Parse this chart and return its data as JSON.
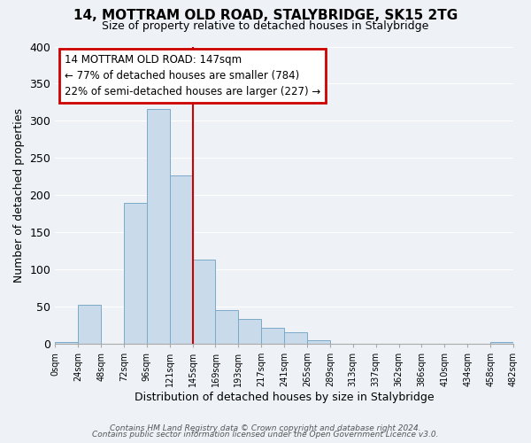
{
  "title": "14, MOTTRAM OLD ROAD, STALYBRIDGE, SK15 2TG",
  "subtitle": "Size of property relative to detached houses in Stalybridge",
  "xlabel": "Distribution of detached houses by size in Stalybridge",
  "ylabel": "Number of detached properties",
  "bar_color": "#c9daea",
  "bar_edge_color": "#7aaac8",
  "background_color": "#eef2f7",
  "bin_labels": [
    "0sqm",
    "24sqm",
    "48sqm",
    "72sqm",
    "96sqm",
    "121sqm",
    "145sqm",
    "169sqm",
    "193sqm",
    "217sqm",
    "241sqm",
    "265sqm",
    "289sqm",
    "313sqm",
    "337sqm",
    "362sqm",
    "386sqm",
    "410sqm",
    "434sqm",
    "458sqm",
    "482sqm"
  ],
  "bin_values": [
    2,
    52,
    0,
    190,
    316,
    226,
    113,
    45,
    33,
    21,
    15,
    5,
    0,
    0,
    0,
    0,
    0,
    0,
    0,
    3,
    0
  ],
  "ylim": [
    0,
    400
  ],
  "yticks": [
    0,
    50,
    100,
    150,
    200,
    250,
    300,
    350,
    400
  ],
  "property_line_x": 6,
  "annotation_title": "14 MOTTRAM OLD ROAD: 147sqm",
  "annotation_line1": "← 77% of detached houses are smaller (784)",
  "annotation_line2": "22% of semi-detached houses are larger (227) →",
  "footer1": "Contains HM Land Registry data © Crown copyright and database right 2024.",
  "footer2": "Contains public sector information licensed under the Open Government Licence v3.0.",
  "grid_color": "#ffffff",
  "annotation_box_color": "#ffffff",
  "annotation_border_color": "#cc0000",
  "red_line_color": "#cc0000",
  "title_fontsize": 11,
  "subtitle_fontsize": 9
}
